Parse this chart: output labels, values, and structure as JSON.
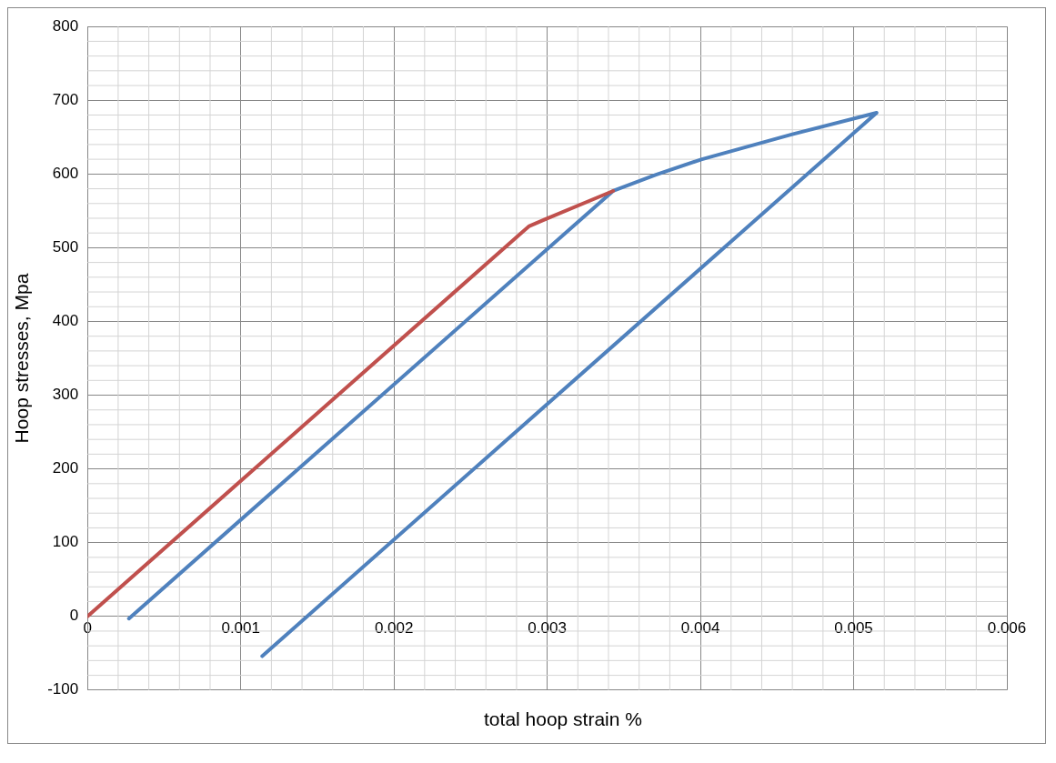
{
  "chart_data": {
    "type": "line",
    "xlabel": "total hoop strain %",
    "ylabel": "Hoop stresses, Mpa",
    "series": [
      {
        "color": "#c0504d",
        "x": [
          0,
          0.00288,
          0.00298,
          0.00343
        ],
        "values": [
          0,
          529,
          538,
          577
        ]
      },
      {
        "color": "#4f81bd",
        "x": [
          0.00027,
          0.00343,
          0.00371,
          0.00401,
          0.0046,
          0.00515,
          0.00114
        ],
        "values": [
          -3,
          577,
          599,
          620,
          654,
          683,
          -54
        ]
      }
    ],
    "xlim": [
      0,
      0.006
    ],
    "xticks": [
      0,
      0.001,
      0.002,
      0.003,
      0.004,
      0.005,
      0.006
    ],
    "ylim": [
      -100,
      800
    ],
    "yticks": [
      -100,
      0,
      100,
      200,
      300,
      400,
      500,
      600,
      700,
      800
    ],
    "grid": true,
    "legend": false,
    "marker": "none",
    "line_style": "solid"
  }
}
